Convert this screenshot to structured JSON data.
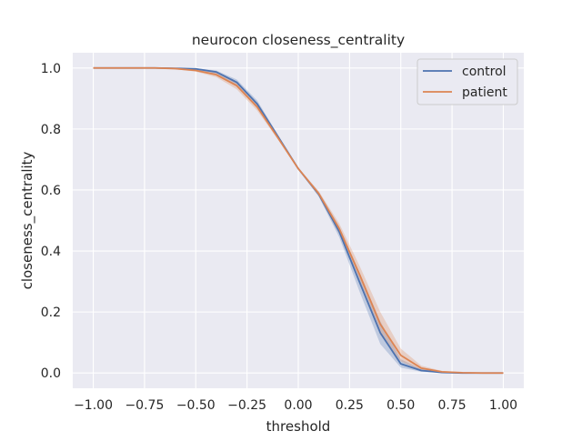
{
  "chart_data": {
    "type": "line",
    "title": "neurocon closeness_centrality",
    "xlabel": "threshold",
    "ylabel": "closeness_centrality",
    "xlim": [
      -1.1,
      1.1
    ],
    "ylim": [
      -0.05,
      1.05
    ],
    "xticks": [
      -1.0,
      -0.75,
      -0.5,
      -0.25,
      0.0,
      0.25,
      0.5,
      0.75,
      1.0
    ],
    "xtick_labels": [
      "−1.00",
      "−0.75",
      "−0.50",
      "−0.25",
      "0.00",
      "0.25",
      "0.50",
      "0.75",
      "1.00"
    ],
    "yticks": [
      0.0,
      0.2,
      0.4,
      0.6,
      0.8,
      1.0
    ],
    "ytick_labels": [
      "0.0",
      "0.2",
      "0.4",
      "0.6",
      "0.8",
      "1.0"
    ],
    "grid": true,
    "legend_position": "top-right",
    "x": [
      -1.0,
      -0.9,
      -0.8,
      -0.7,
      -0.6,
      -0.5,
      -0.4,
      -0.3,
      -0.2,
      -0.1,
      0.0,
      0.1,
      0.2,
      0.3,
      0.4,
      0.5,
      0.6,
      0.7,
      0.8,
      0.9,
      1.0
    ],
    "series": [
      {
        "name": "control",
        "color": "#4c72b0",
        "values": [
          1.0,
          1.0,
          1.0,
          1.0,
          0.999,
          0.997,
          0.987,
          0.953,
          0.882,
          0.776,
          0.67,
          0.586,
          0.463,
          0.296,
          0.132,
          0.03,
          0.008,
          0.002,
          0.0,
          0.0,
          0.0
        ],
        "ci_lower": [
          1.0,
          1.0,
          1.0,
          1.0,
          0.998,
          0.994,
          0.98,
          0.942,
          0.87,
          0.77,
          0.667,
          0.578,
          0.445,
          0.265,
          0.095,
          0.018,
          0.004,
          0.001,
          0.0,
          0.0,
          0.0
        ],
        "ci_upper": [
          1.0,
          1.0,
          1.0,
          1.0,
          1.0,
          0.999,
          0.992,
          0.962,
          0.893,
          0.782,
          0.673,
          0.594,
          0.48,
          0.327,
          0.17,
          0.045,
          0.013,
          0.004,
          0.001,
          0.0,
          0.0
        ]
      },
      {
        "name": "patient",
        "color": "#dd8452",
        "values": [
          1.0,
          1.0,
          1.0,
          1.0,
          0.998,
          0.992,
          0.978,
          0.942,
          0.872,
          0.772,
          0.67,
          0.588,
          0.473,
          0.321,
          0.16,
          0.058,
          0.016,
          0.004,
          0.001,
          0.0,
          0.0
        ],
        "ci_lower": [
          1.0,
          1.0,
          1.0,
          1.0,
          0.996,
          0.988,
          0.97,
          0.93,
          0.86,
          0.766,
          0.667,
          0.58,
          0.456,
          0.292,
          0.125,
          0.038,
          0.009,
          0.002,
          0.0,
          0.0,
          0.0
        ],
        "ci_upper": [
          1.0,
          1.0,
          1.0,
          1.0,
          1.0,
          0.996,
          0.985,
          0.953,
          0.884,
          0.778,
          0.673,
          0.596,
          0.49,
          0.35,
          0.2,
          0.08,
          0.024,
          0.007,
          0.002,
          0.001,
          0.0
        ]
      }
    ]
  }
}
